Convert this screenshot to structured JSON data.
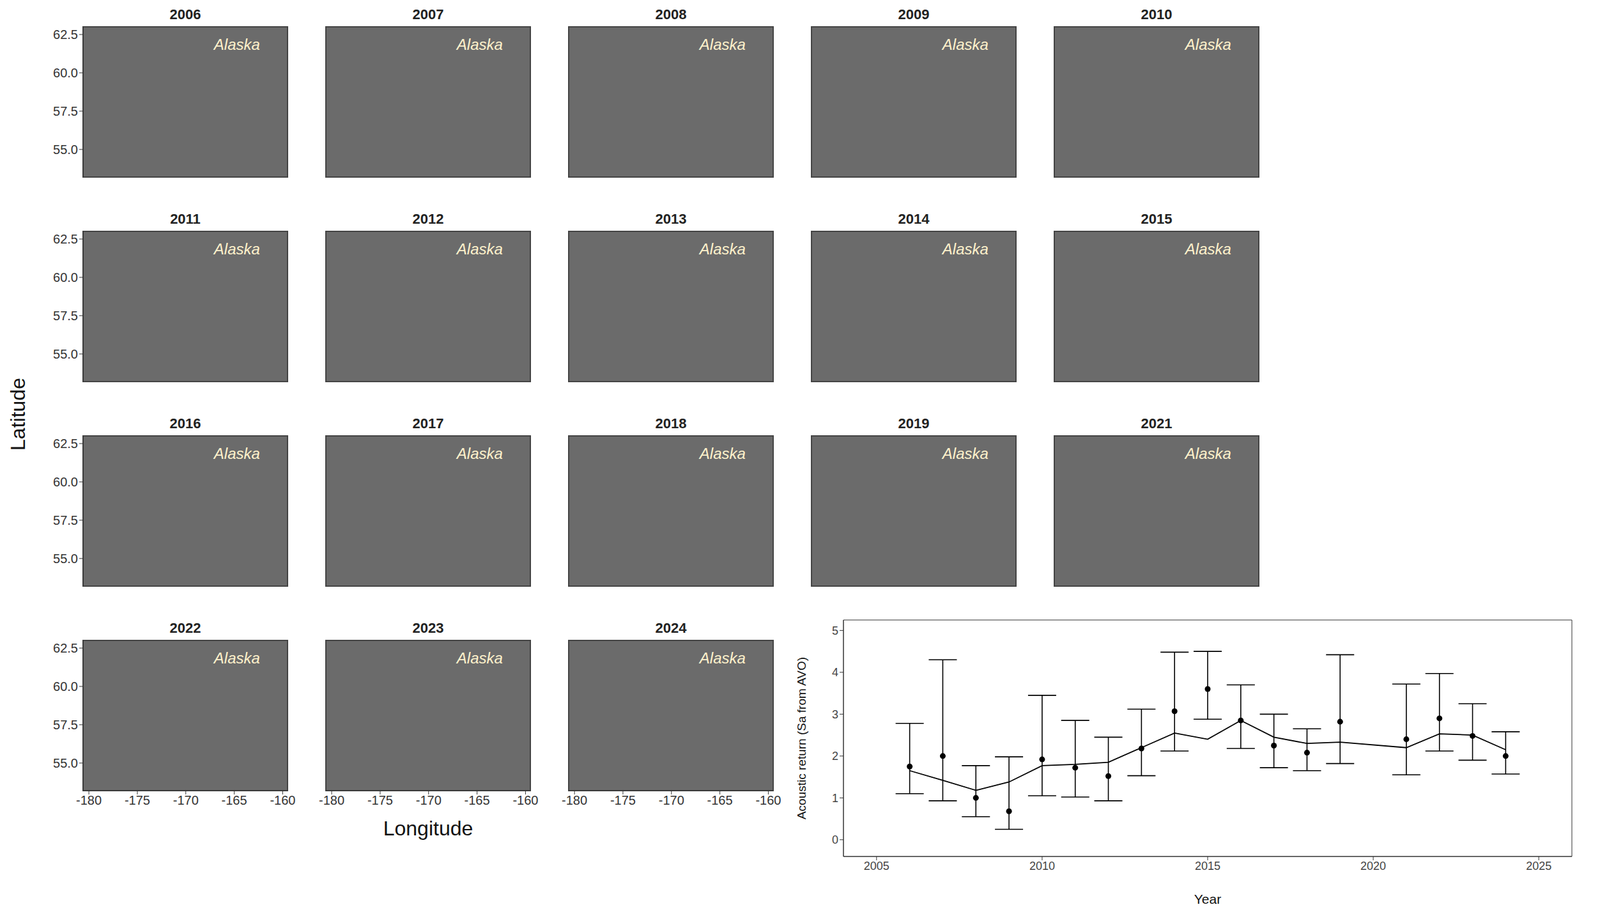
{
  "chart_data": [
    {
      "type": "map",
      "titles": [
        "2006",
        "2007",
        "2008",
        "2009",
        "2010",
        "2011",
        "2012",
        "2013",
        "2014",
        "2015",
        "2016",
        "2017",
        "2018",
        "2019",
        "2021",
        "2022",
        "2023",
        "2024"
      ],
      "annotation": "Alaska",
      "xlabel": "Longitude",
      "ylabel": "Latitude",
      "xlim": [
        -180.6,
        -159.5
      ],
      "ylim": [
        53.2,
        63.0
      ],
      "xticks": [
        -180,
        -175,
        -170,
        -165,
        -160
      ],
      "yticks": [
        {
          "value": 55,
          "label": "55.0"
        },
        57.5,
        {
          "value": 60,
          "label": "60.0"
        },
        62.5
      ],
      "color": "#6b6b6b"
    },
    {
      "type": "line",
      "xlabel": "Year",
      "ylabel": "Acoustic return (Sa from AVO)",
      "x": [
        2006,
        2007,
        2008,
        2009,
        2010,
        2011,
        2012,
        2013,
        2014,
        2015,
        2016,
        2017,
        2018,
        2019,
        2021,
        2022,
        2023,
        2024
      ],
      "xlim": [
        2004,
        2026
      ],
      "ylim": [
        -0.4,
        5.25
      ],
      "xticks": [
        2005,
        2010,
        2015,
        2020,
        2025
      ],
      "yticks": [
        0,
        1,
        2,
        3,
        4,
        5
      ],
      "series": [
        {
          "type": "scatter",
          "color": "#000000",
          "marker": "circle",
          "values": [
            1.75,
            2.0,
            1.0,
            0.68,
            1.92,
            1.72,
            1.52,
            2.18,
            3.07,
            3.6,
            2.85,
            2.25,
            2.08,
            2.82,
            2.4,
            2.9,
            2.48,
            2.0
          ],
          "error_low": [
            1.1,
            0.93,
            0.55,
            0.25,
            1.05,
            1.02,
            0.93,
            1.53,
            2.12,
            2.88,
            2.18,
            1.72,
            1.65,
            1.82,
            1.55,
            2.12,
            1.9,
            1.57
          ],
          "error_high": [
            2.78,
            4.3,
            1.77,
            1.98,
            3.45,
            2.85,
            2.45,
            3.12,
            4.48,
            4.5,
            3.7,
            3.0,
            2.65,
            4.42,
            3.72,
            3.97,
            3.25,
            2.58
          ]
        },
        {
          "type": "line",
          "color": "#000000",
          "line_style": "solid",
          "values": [
            1.65,
            1.42,
            1.18,
            1.38,
            1.77,
            1.8,
            1.85,
            2.2,
            2.55,
            2.4,
            2.85,
            2.45,
            2.3,
            2.33,
            2.2,
            2.53,
            2.5,
            2.15
          ]
        }
      ]
    }
  ]
}
